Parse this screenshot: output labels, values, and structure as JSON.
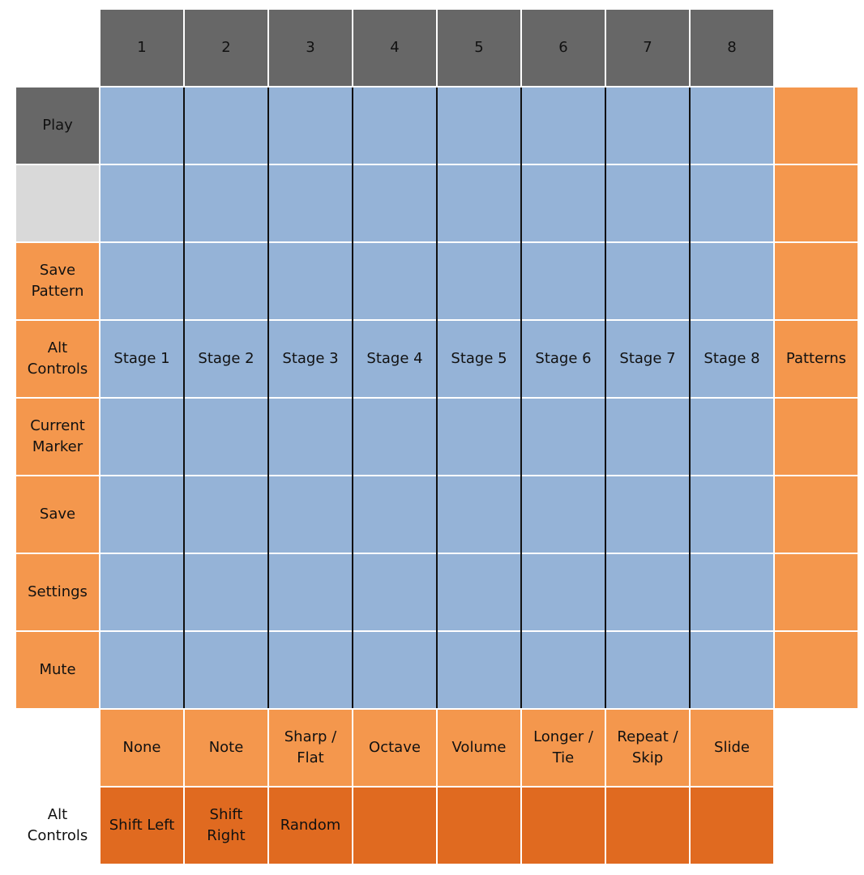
{
  "columns": [
    "1",
    "2",
    "3",
    "4",
    "5",
    "6",
    "7",
    "8"
  ],
  "left_rows": [
    "Play",
    "",
    "Save\nPattern",
    "Alt\nControls",
    "Current\nMarker",
    "Save",
    "Settings",
    "Mute"
  ],
  "stages": [
    "Stage 1",
    "Stage 2",
    "Stage 3",
    "Stage 4",
    "Stage 5",
    "Stage 6",
    "Stage 7",
    "Stage 8"
  ],
  "right_label": "Patterns",
  "functions": [
    "None",
    "Note",
    "Sharp /\nFlat",
    "Octave",
    "Volume",
    "Longer /\nTie",
    "Repeat /\nSkip",
    "Slide"
  ],
  "alt_controls_label": "Alt\nControls",
  "alt_functions": [
    "Shift Left",
    "Shift Right",
    "Random",
    "",
    "",
    "",
    "",
    ""
  ],
  "colors": {
    "header": "#676767",
    "disabled": "#d9d9d9",
    "button": "#f4974d",
    "alt_button": "#e06a20",
    "pad": "#95b3d7"
  }
}
